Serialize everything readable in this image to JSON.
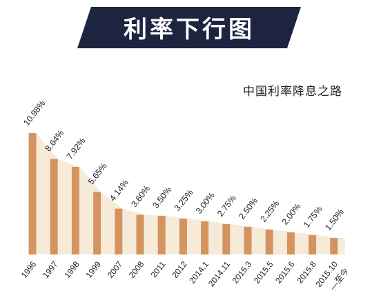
{
  "header": {
    "title": "利率下行图",
    "subtitle": "中国利率降息之路"
  },
  "colors": {
    "bar": "#d49460",
    "banner": "#1c2440",
    "shadow": "#f6ead9"
  },
  "chart_data": {
    "type": "bar",
    "title": "利率下行图",
    "subtitle": "中国利率降息之路",
    "categories": [
      "1996",
      "1997",
      "1998",
      "1999",
      "2007",
      "2008",
      "2011",
      "2012",
      "2014.1",
      "2014.11",
      "2015.3",
      "2015.5",
      "2015.6",
      "2015.8",
      "2015.10"
    ],
    "category_note": "—至今",
    "values": [
      10.98,
      8.64,
      7.92,
      5.65,
      4.14,
      3.6,
      3.5,
      3.25,
      3.0,
      2.75,
      2.5,
      2.25,
      2.0,
      1.75,
      1.5
    ],
    "labels": [
      "10.98%",
      "8.64%",
      "7.92%",
      "5.65%",
      "4.14%",
      "3.60%",
      "3.50%",
      "3.25%",
      "3.00%",
      "2.75%",
      "2.50%",
      "2.25%",
      "2.00%",
      "1.75%",
      "1.50%"
    ],
    "ylim": [
      0,
      11
    ],
    "grid": false,
    "legend": false
  }
}
